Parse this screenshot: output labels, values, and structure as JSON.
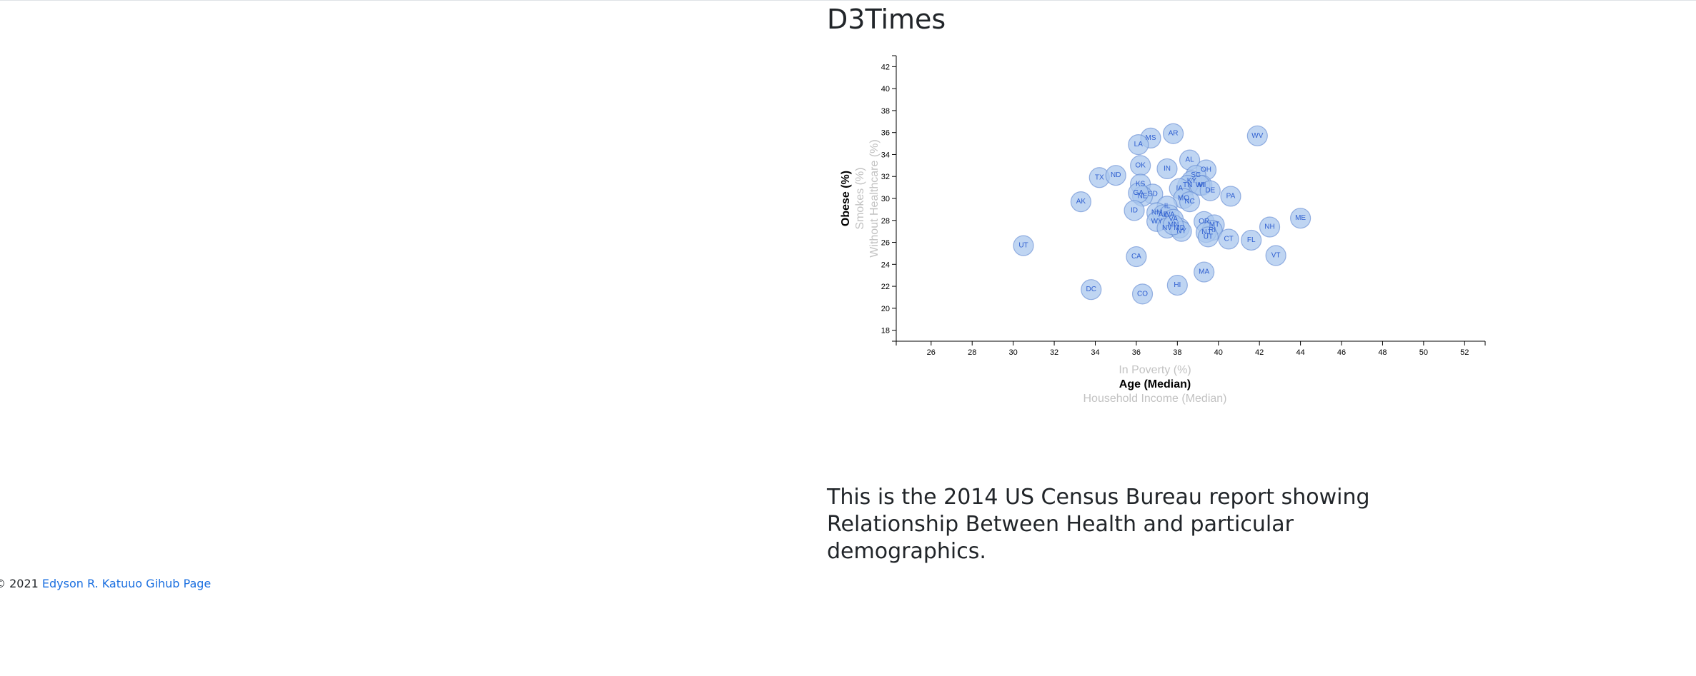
{
  "page": {
    "title": "D3Times",
    "description": "This is the 2014 US Census Bureau report showing Relationship Between Health and particular demographics.",
    "footer": {
      "copyright": "© 2021",
      "link_text": "Edyson R. Katuuo Gihub Page"
    }
  },
  "colors": {
    "circle_fill": "#a9c7ee",
    "circle_stroke": "#5d86d1",
    "label": "#2f5fd0",
    "inactive_axis": "#c2c2c2"
  },
  "chart_data": {
    "type": "scatter",
    "title": "",
    "x_axis_options": [
      {
        "label": "In Poverty (%)",
        "active": false
      },
      {
        "label": "Age (Median)",
        "active": true
      },
      {
        "label": "Household Income (Median)",
        "active": false
      }
    ],
    "y_axis_options": [
      {
        "label": "Obese (%)",
        "active": true
      },
      {
        "label": "Smokes (%)",
        "active": false
      },
      {
        "label": "Without Healthcare (%)",
        "active": false
      }
    ],
    "xlim": [
      24.3,
      53.0
    ],
    "ylim": [
      17.0,
      43.0
    ],
    "x_ticks": [
      26,
      28,
      30,
      32,
      34,
      36,
      38,
      40,
      42,
      44,
      46,
      48,
      50,
      52
    ],
    "y_ticks": [
      18,
      20,
      22,
      24,
      26,
      28,
      30,
      32,
      34,
      36,
      38,
      40,
      42
    ],
    "points": [
      {
        "state": "WV",
        "x": 41.9,
        "y": 35.7
      },
      {
        "state": "AR",
        "x": 37.8,
        "y": 35.9
      },
      {
        "state": "MS",
        "x": 36.7,
        "y": 35.5
      },
      {
        "state": "LA",
        "x": 36.1,
        "y": 34.9
      },
      {
        "state": "AL",
        "x": 38.6,
        "y": 33.5
      },
      {
        "state": "OK",
        "x": 36.2,
        "y": 33.0
      },
      {
        "state": "IN",
        "x": 37.5,
        "y": 32.7
      },
      {
        "state": "OH",
        "x": 39.4,
        "y": 32.6
      },
      {
        "state": "SC",
        "x": 38.9,
        "y": 32.1
      },
      {
        "state": "TX",
        "x": 34.2,
        "y": 31.9
      },
      {
        "state": "ND",
        "x": 35.0,
        "y": 32.1
      },
      {
        "state": "KY",
        "x": 38.7,
        "y": 31.6
      },
      {
        "state": "KS",
        "x": 36.2,
        "y": 31.3
      },
      {
        "state": "MI",
        "x": 39.2,
        "y": 31.2
      },
      {
        "state": "TN",
        "x": 38.5,
        "y": 31.2
      },
      {
        "state": "WI",
        "x": 39.1,
        "y": 31.2
      },
      {
        "state": "IA",
        "x": 38.1,
        "y": 30.9
      },
      {
        "state": "DE",
        "x": 39.6,
        "y": 30.7
      },
      {
        "state": "SD",
        "x": 36.8,
        "y": 30.4
      },
      {
        "state": "NE",
        "x": 36.3,
        "y": 30.2
      },
      {
        "state": "GA",
        "x": 36.1,
        "y": 30.5
      },
      {
        "state": "MO",
        "x": 38.3,
        "y": 30.0
      },
      {
        "state": "PA",
        "x": 40.6,
        "y": 30.2
      },
      {
        "state": "NC",
        "x": 38.6,
        "y": 29.7
      },
      {
        "state": "AK",
        "x": 33.3,
        "y": 29.7
      },
      {
        "state": "IL",
        "x": 37.5,
        "y": 29.3
      },
      {
        "state": "NM",
        "x": 37.0,
        "y": 28.7
      },
      {
        "state": "ID",
        "x": 35.9,
        "y": 28.9
      },
      {
        "state": "AZ",
        "x": 37.3,
        "y": 28.5
      },
      {
        "state": "WA",
        "x": 37.6,
        "y": 28.5
      },
      {
        "state": "OR",
        "x": 39.3,
        "y": 27.9
      },
      {
        "state": "VA",
        "x": 37.8,
        "y": 28.1
      },
      {
        "state": "WY",
        "x": 37.0,
        "y": 27.9
      },
      {
        "state": "MT",
        "x": 39.8,
        "y": 27.6
      },
      {
        "state": "NV",
        "x": 37.5,
        "y": 27.3
      },
      {
        "state": "MD",
        "x": 38.1,
        "y": 27.3
      },
      {
        "state": "NY",
        "x": 38.2,
        "y": 27.0
      },
      {
        "state": "RI",
        "x": 39.7,
        "y": 27.1
      },
      {
        "state": "MN",
        "x": 37.8,
        "y": 27.6
      },
      {
        "state": "NJ",
        "x": 39.4,
        "y": 26.9
      },
      {
        "state": "UT",
        "x": 39.5,
        "y": 26.5
      },
      {
        "state": "NH",
        "x": 42.5,
        "y": 27.4
      },
      {
        "state": "ME",
        "x": 44.0,
        "y": 28.2
      },
      {
        "state": "CT",
        "x": 40.5,
        "y": 26.3
      },
      {
        "state": "FL",
        "x": 41.6,
        "y": 26.2
      },
      {
        "state": "UT",
        "x": 30.5,
        "y": 25.7
      },
      {
        "state": "VT",
        "x": 42.8,
        "y": 24.8
      },
      {
        "state": "CA",
        "x": 36.0,
        "y": 24.7
      },
      {
        "state": "MA",
        "x": 39.3,
        "y": 23.3
      },
      {
        "state": "HI",
        "x": 38.0,
        "y": 22.1
      },
      {
        "state": "DC",
        "x": 33.8,
        "y": 21.7
      },
      {
        "state": "CO",
        "x": 36.3,
        "y": 21.3
      }
    ]
  }
}
